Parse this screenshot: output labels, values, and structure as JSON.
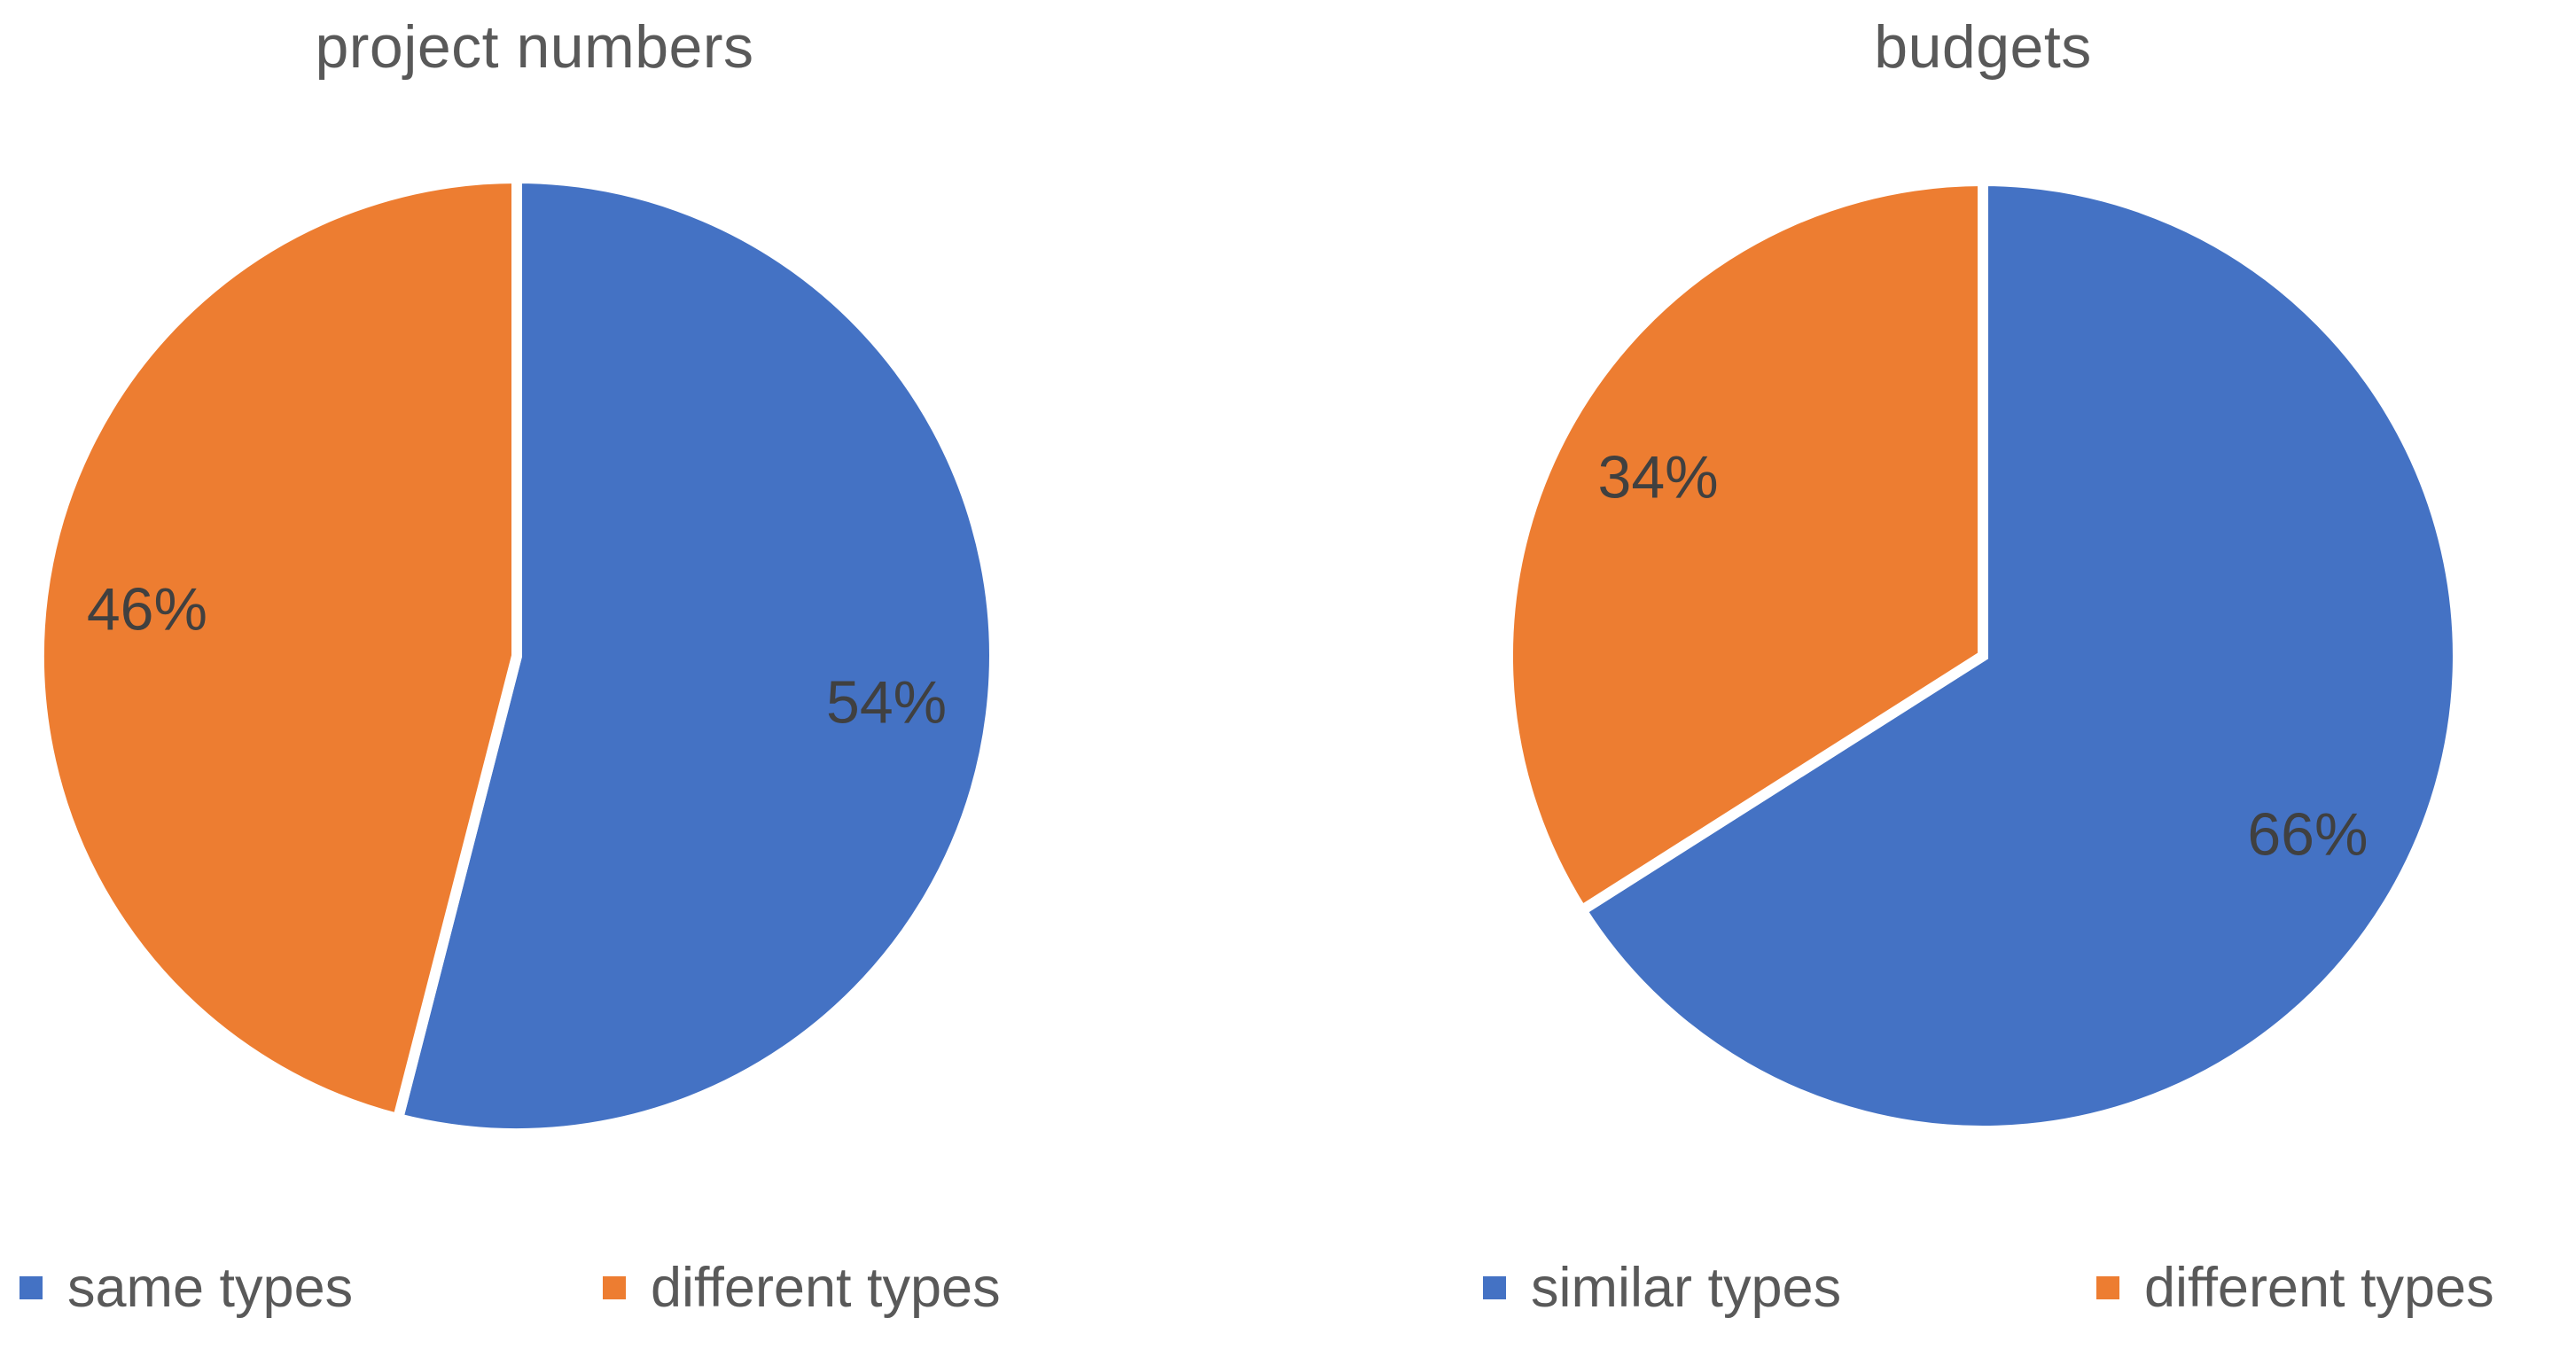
{
  "page": {
    "background": "#ffffff"
  },
  "colors": {
    "blue": "#4472C4",
    "orange": "#ED7D31",
    "slice_border": "#FFFFFF",
    "title_text": "#595959",
    "label_text": "#404040",
    "legend_text": "#595959"
  },
  "chart_data": [
    {
      "type": "pie",
      "title": "project numbers",
      "start_angle_deg": 0,
      "direction": "clockwise",
      "legend_position": "bottom",
      "slices": [
        {
          "label": "same types",
          "value": 54,
          "display": "54%",
          "color": "#4472C4"
        },
        {
          "label": "different types",
          "value": 46,
          "display": "46%",
          "color": "#ED7D31"
        }
      ]
    },
    {
      "type": "pie",
      "title": "budgets",
      "start_angle_deg": 0,
      "direction": "clockwise",
      "legend_position": "bottom",
      "slices": [
        {
          "label": "similar types",
          "value": 66,
          "display": "66%",
          "color": "#4472C4"
        },
        {
          "label": "different types",
          "value": 34,
          "display": "34%",
          "color": "#ED7D31"
        }
      ]
    }
  ]
}
